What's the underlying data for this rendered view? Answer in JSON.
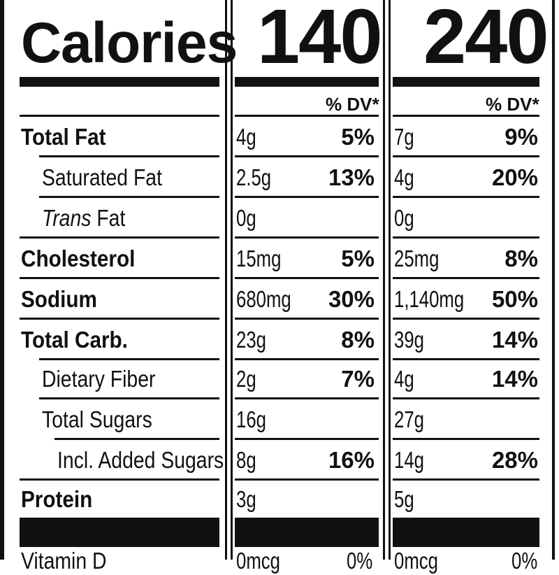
{
  "calories": {
    "label": "Calories",
    "values": [
      "140",
      "240"
    ]
  },
  "dv_header": "% DV*",
  "rows": [
    {
      "name": "Total Fat",
      "amounts": [
        "4g",
        "7g"
      ],
      "dv": [
        "5%",
        "9%"
      ]
    },
    {
      "name": "Saturated Fat",
      "amounts": [
        "2.5g",
        "4g"
      ],
      "dv": [
        "13%",
        "20%"
      ]
    },
    {
      "name_italic": "Trans",
      "name_rest": " Fat",
      "amounts": [
        "0g",
        "0g"
      ],
      "dv": [
        "",
        ""
      ]
    },
    {
      "name": "Cholesterol",
      "amounts": [
        "15mg",
        "25mg"
      ],
      "dv": [
        "5%",
        "8%"
      ]
    },
    {
      "name": "Sodium",
      "amounts": [
        "680mg",
        "1,140mg"
      ],
      "dv": [
        "30%",
        "50%"
      ]
    },
    {
      "name": "Total Carb.",
      "amounts": [
        "23g",
        "39g"
      ],
      "dv": [
        "8%",
        "14%"
      ]
    },
    {
      "name": "Dietary Fiber",
      "amounts": [
        "2g",
        "4g"
      ],
      "dv": [
        "7%",
        "14%"
      ]
    },
    {
      "name": "Total Sugars",
      "amounts": [
        "16g",
        "27g"
      ],
      "dv": [
        "",
        ""
      ]
    },
    {
      "name": "Incl. Added Sugars",
      "amounts": [
        "8g",
        "14g"
      ],
      "dv": [
        "16%",
        "28%"
      ]
    },
    {
      "name": "Protein",
      "amounts": [
        "3g",
        "5g"
      ],
      "dv": [
        "",
        ""
      ]
    }
  ],
  "vitamin_d": {
    "name": "Vitamin D",
    "amounts": [
      "0mcg",
      "0mcg"
    ],
    "dv": [
      "0%",
      "0%"
    ]
  }
}
